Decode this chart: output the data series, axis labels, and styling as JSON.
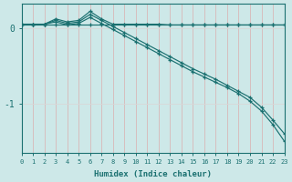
{
  "xlabel": "Humidex (Indice chaleur)",
  "bg_color": "#cde8e8",
  "grid_color": "#b8d8d8",
  "line_color": "#1a7070",
  "xmin": 0,
  "xmax": 23,
  "ymin": -1.65,
  "ymax": 0.32,
  "yticks": [
    0,
    -1
  ],
  "xticks": [
    0,
    1,
    2,
    3,
    4,
    5,
    6,
    7,
    8,
    9,
    10,
    11,
    12,
    13,
    14,
    15,
    16,
    17,
    18,
    19,
    20,
    21,
    22,
    23
  ],
  "series1_x": [
    0,
    1,
    2,
    3,
    4,
    5,
    6,
    7,
    8,
    9,
    10,
    11,
    12,
    13,
    14,
    15,
    16,
    17,
    18,
    19,
    20,
    21,
    22,
    23
  ],
  "series1_y": [
    0.05,
    0.05,
    0.05,
    0.05,
    0.05,
    0.05,
    0.05,
    0.05,
    0.05,
    0.05,
    0.05,
    0.05,
    0.05,
    0.05,
    0.05,
    0.05,
    0.05,
    0.05,
    0.05,
    0.05,
    0.05,
    0.05,
    0.05,
    0.05
  ],
  "series2_x": [
    0,
    1,
    2,
    3,
    4,
    5,
    6,
    7,
    8,
    9,
    10,
    11,
    12,
    13,
    14,
    15,
    16,
    17,
    18,
    19,
    20,
    21,
    22,
    23
  ],
  "series2_y": [
    0.05,
    0.05,
    0.05,
    0.12,
    0.08,
    0.1,
    0.22,
    0.12,
    0.05,
    0.05,
    0.05,
    0.05,
    0.05,
    0.04,
    0.04,
    0.04,
    0.04,
    0.04,
    0.04,
    0.04,
    0.04,
    0.04,
    0.04,
    0.04
  ],
  "series3_x": [
    0,
    1,
    2,
    3,
    4,
    5,
    6,
    7,
    8,
    9,
    10,
    11,
    12,
    13,
    14,
    15,
    16,
    17,
    18,
    19,
    20,
    21,
    22,
    23
  ],
  "series3_y": [
    0.05,
    0.05,
    0.05,
    0.1,
    0.06,
    0.08,
    0.18,
    0.1,
    0.02,
    -0.06,
    -0.14,
    -0.22,
    -0.3,
    -0.38,
    -0.46,
    -0.54,
    -0.61,
    -0.68,
    -0.76,
    -0.84,
    -0.92,
    -1.05,
    -1.22,
    -1.4
  ],
  "series4_x": [
    0,
    1,
    2,
    3,
    4,
    5,
    6,
    7,
    8,
    9,
    10,
    11,
    12,
    13,
    14,
    15,
    16,
    17,
    18,
    19,
    20,
    21,
    22,
    23
  ],
  "series4_y": [
    0.05,
    0.05,
    0.05,
    0.08,
    0.04,
    0.06,
    0.14,
    0.06,
    -0.02,
    -0.1,
    -0.18,
    -0.26,
    -0.34,
    -0.42,
    -0.5,
    -0.58,
    -0.65,
    -0.72,
    -0.79,
    -0.87,
    -0.97,
    -1.1,
    -1.28,
    -1.5
  ]
}
